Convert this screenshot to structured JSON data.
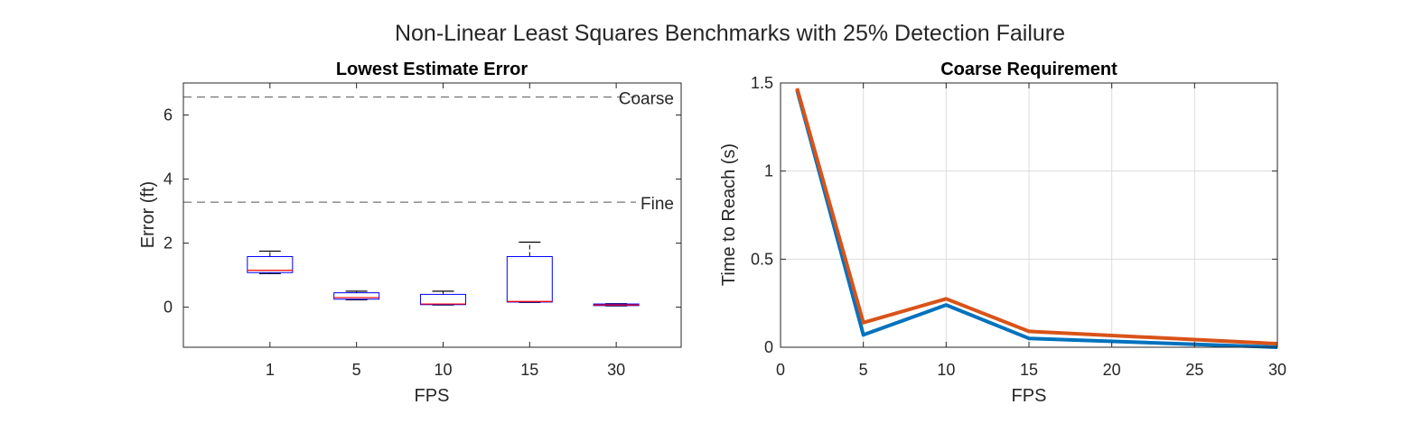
{
  "figure": {
    "title": "Non-Linear Least Squares Benchmarks with 25% Detection Failure"
  },
  "chart_data": [
    {
      "type": "box",
      "title": "Lowest Estimate Error",
      "xlabel": "FPS",
      "ylabel": "Error (ft)",
      "categories": [
        "1",
        "5",
        "10",
        "15",
        "30"
      ],
      "ylim": [
        -1.25,
        7.0
      ],
      "yticks": [
        0,
        2,
        4,
        6
      ],
      "grid": false,
      "boxes": [
        {
          "category": "1",
          "min": 1.05,
          "q1": 1.08,
          "median": 1.15,
          "q3": 1.58,
          "max": 1.75
        },
        {
          "category": "5",
          "min": 0.23,
          "q1": 0.25,
          "median": 0.3,
          "q3": 0.45,
          "max": 0.5
        },
        {
          "category": "10",
          "min": 0.07,
          "q1": 0.08,
          "median": 0.1,
          "q3": 0.4,
          "max": 0.5
        },
        {
          "category": "15",
          "min": 0.15,
          "q1": 0.16,
          "median": 0.18,
          "q3": 1.58,
          "max": 2.03
        },
        {
          "category": "30",
          "min": 0.04,
          "q1": 0.05,
          "median": 0.07,
          "q3": 0.1,
          "max": 0.11
        }
      ],
      "reference_lines": [
        {
          "label": "Coarse",
          "value": 6.56
        },
        {
          "label": "Fine",
          "value": 3.28
        }
      ],
      "colors": {
        "box": "#0000ff",
        "median": "#ff0000",
        "whisker": "#000000",
        "reference": "#555555"
      }
    },
    {
      "type": "line",
      "title": "Coarse Requirement",
      "xlabel": "FPS",
      "ylabel": "Time to Reach (s)",
      "xlim": [
        0,
        30
      ],
      "ylim": [
        0,
        1.5
      ],
      "xticks": [
        0,
        5,
        10,
        15,
        20,
        25,
        30
      ],
      "yticks": [
        0,
        0.5,
        1,
        1.5
      ],
      "grid": true,
      "x": [
        1,
        5,
        10,
        15,
        30
      ],
      "series": [
        {
          "color": "#0072bd",
          "values": [
            1.46,
            0.07,
            0.24,
            0.05,
            0.0
          ]
        },
        {
          "color": "#d95319",
          "values": [
            1.47,
            0.14,
            0.275,
            0.09,
            0.02
          ]
        }
      ]
    }
  ]
}
